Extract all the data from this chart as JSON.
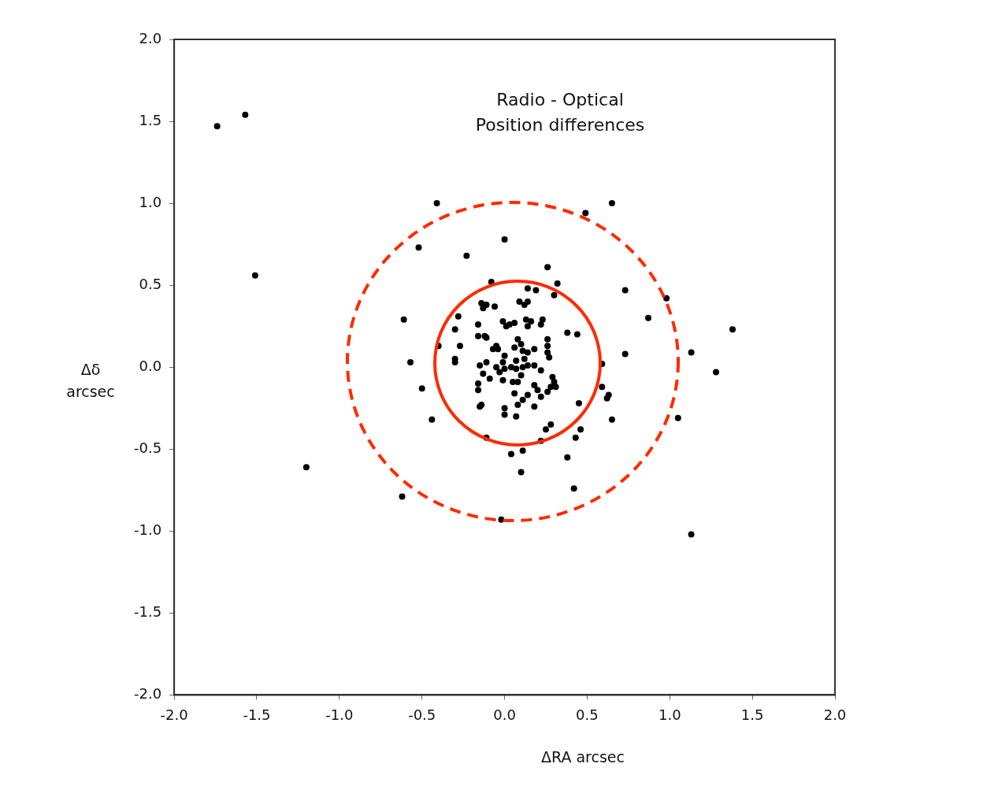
{
  "chart_data": {
    "type": "scatter",
    "title": "Radio - Optical",
    "subtitle": "Position differences",
    "xlabel": "ΔRA arcsec",
    "ylabel": "Δδ arcsec",
    "xlim": [
      -2,
      2
    ],
    "ylim": [
      -2,
      2
    ],
    "xticks": [
      {
        "value": -2,
        "label": "-2.0"
      },
      {
        "value": -1.5,
        "label": "-1.5"
      },
      {
        "value": -1,
        "label": "-1.0"
      },
      {
        "value": -0.5,
        "label": "-0.5"
      },
      {
        "value": 0,
        "label": "0.0"
      },
      {
        "value": 0.5,
        "label": "0.5"
      },
      {
        "value": 1,
        "label": "1.0"
      },
      {
        "value": 1.5,
        "label": "1.5"
      },
      {
        "value": 2,
        "label": "2.0"
      }
    ],
    "yticks": [
      {
        "value": -2,
        "label": "-2.0"
      },
      {
        "value": -1.5,
        "label": "-1.5"
      },
      {
        "value": -1,
        "label": "-1.0"
      },
      {
        "value": -0.5,
        "label": "-0.5"
      },
      {
        "value": 0,
        "label": "0.0"
      },
      {
        "value": 0.5,
        "label": "0.5"
      },
      {
        "value": 1,
        "label": "1.0"
      },
      {
        "value": 1.5,
        "label": "1.5"
      },
      {
        "value": 2,
        "label": "2.0"
      }
    ],
    "grid": false,
    "legend": false,
    "marker": "circle",
    "series": [
      {
        "type": "scatter",
        "color": "#000000",
        "x": [
          -1.74,
          -1.57,
          -1.51,
          -1.2,
          -0.41,
          -0.52,
          -0.23,
          0.0,
          0.49,
          0.65,
          0.26,
          0.32,
          -0.08,
          0.73,
          0.98,
          0.87,
          1.38,
          1.13,
          0.73,
          1.28,
          -0.61,
          -0.57,
          -0.5,
          -0.44,
          0.59,
          0.59,
          0.63,
          0.62,
          0.65,
          0.45,
          0.44,
          0.38,
          1.05,
          1.13,
          -0.62,
          -0.02,
          0.1,
          0.04,
          0.11,
          0.38,
          0.42,
          0.46,
          0.43,
          0.28,
          0.25,
          0.22,
          -0.11,
          0.3,
          0.19,
          0.14,
          -0.14,
          -0.13,
          -0.11,
          -0.06,
          -0.28,
          -0.3,
          -0.4,
          -0.27,
          -0.16,
          -0.16,
          -0.12,
          -0.11,
          -0.07,
          -0.04,
          -0.05,
          -0.01,
          0.01,
          0.03,
          0.06,
          0.09,
          0.14,
          0.12,
          0.13,
          0.16,
          0.14,
          0.22,
          0.23,
          0.26,
          0.26,
          0.26,
          0.27,
          0.18,
          0.08,
          0.1,
          0.06,
          0.11,
          0.14,
          0.12,
          0.14,
          0.11,
          0.0,
          -0.01,
          -0.05,
          -0.03,
          0.0,
          0.04,
          0.07,
          0.07,
          0.1,
          0.08,
          0.05,
          -0.01,
          -0.09,
          -0.13,
          -0.15,
          -0.11,
          -0.16,
          -0.16,
          -0.14,
          -0.15,
          -0.3,
          -0.3,
          0.0,
          0.0,
          0.07,
          0.08,
          0.11,
          0.14,
          0.18,
          0.2,
          0.22,
          0.18,
          0.26,
          0.28,
          0.31,
          0.29,
          0.3,
          0.22,
          0.18,
          0.06
        ],
        "values": [
          1.47,
          1.54,
          0.56,
          -0.61,
          1.0,
          0.73,
          0.68,
          0.78,
          0.94,
          1.0,
          0.61,
          0.51,
          0.52,
          0.47,
          0.42,
          0.3,
          0.23,
          0.09,
          0.08,
          -0.03,
          0.29,
          0.03,
          -0.13,
          -0.32,
          0.02,
          -0.12,
          -0.17,
          -0.19,
          -0.32,
          -0.22,
          0.2,
          0.21,
          -0.31,
          -1.02,
          -0.79,
          -0.93,
          -0.64,
          -0.53,
          -0.51,
          -0.55,
          -0.74,
          -0.38,
          -0.43,
          -0.35,
          -0.38,
          -0.45,
          -0.43,
          0.44,
          0.47,
          0.48,
          0.39,
          0.36,
          0.38,
          0.37,
          0.31,
          0.23,
          0.13,
          0.13,
          0.26,
          0.19,
          0.19,
          0.18,
          0.11,
          0.11,
          0.13,
          0.28,
          0.25,
          0.26,
          0.27,
          0.4,
          0.4,
          0.38,
          0.29,
          0.28,
          0.25,
          0.26,
          0.29,
          0.17,
          0.13,
          0.09,
          0.06,
          0.11,
          0.17,
          0.14,
          0.12,
          0.1,
          0.09,
          0.05,
          0.01,
          0.0,
          0.07,
          0.03,
          0.0,
          -0.03,
          -0.01,
          0.0,
          0.04,
          -0.01,
          -0.05,
          -0.09,
          -0.09,
          -0.08,
          -0.07,
          -0.04,
          0.01,
          0.03,
          -0.1,
          -0.14,
          -0.23,
          -0.24,
          0.05,
          0.03,
          -0.25,
          -0.29,
          -0.3,
          -0.23,
          -0.2,
          -0.17,
          -0.11,
          -0.14,
          -0.18,
          -0.24,
          -0.15,
          -0.12,
          -0.12,
          -0.06,
          -0.09,
          -0.02,
          0.01,
          -0.16
        ]
      }
    ]
  }
}
